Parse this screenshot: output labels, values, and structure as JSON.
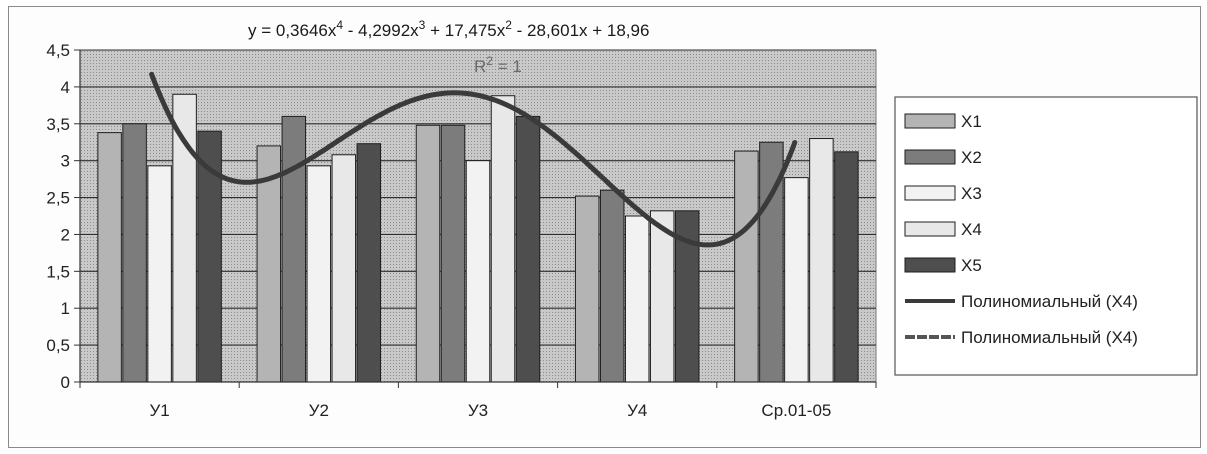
{
  "chart_data": {
    "type": "bar",
    "categories": [
      "У1",
      "У2",
      "У3",
      "У4",
      "Ср.01-05"
    ],
    "ylim": [
      0,
      4.5
    ],
    "yticks": [
      "0",
      "0,5",
      "1",
      "1,5",
      "2",
      "2,5",
      "3",
      "3,5",
      "4",
      "4,5"
    ],
    "ytick_values": [
      0,
      0.5,
      1,
      1.5,
      2,
      2.5,
      3,
      3.5,
      4,
      4.5
    ],
    "grid": "horizontal",
    "legend_position": "right",
    "series": [
      {
        "name": "X1",
        "values": [
          3.38,
          3.2,
          3.48,
          2.52,
          3.13
        ],
        "color": "#b4b4b4"
      },
      {
        "name": "X2",
        "values": [
          3.5,
          3.6,
          3.48,
          2.6,
          3.25
        ],
        "color": "#7c7c7c"
      },
      {
        "name": "X3",
        "values": [
          2.93,
          2.93,
          3.0,
          2.25,
          2.77
        ],
        "color": "#f2f2f2"
      },
      {
        "name": "X4",
        "values": [
          3.9,
          3.08,
          3.88,
          2.32,
          3.3
        ],
        "color": "#e8e8e8"
      },
      {
        "name": "X5",
        "values": [
          3.4,
          3.23,
          3.6,
          2.32,
          3.12
        ],
        "color": "#4e4e4e"
      }
    ],
    "trendlines": [
      {
        "name": "Полиномиальный (X4)",
        "color": "#3a3a3a"
      },
      {
        "name": "Полиномиальный (X4)",
        "color": "#555555"
      }
    ],
    "trendline_coefficients": [
      0.3646,
      -4.2992,
      17.475,
      -28.601,
      18.96
    ],
    "equation": {
      "prefix": "y = 0,3646x",
      "exp4": "4",
      "term3": " - 4,2992x",
      "exp3": "3",
      "term2": " + 17,475x",
      "exp2": "2",
      "rest": " - 28,601x + 18,96"
    },
    "r_squared": {
      "prefix": "R",
      "exp": "2",
      "rest": " = 1"
    }
  }
}
